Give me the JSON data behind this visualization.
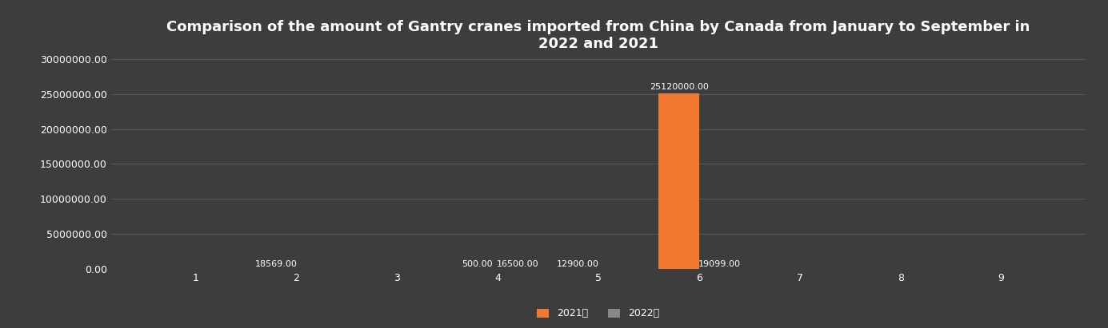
{
  "title": "Comparison of the amount of Gantry cranes imported from China by Canada from January to September in\n2022 and 2021",
  "categories": [
    1,
    2,
    3,
    4,
    5,
    6,
    7,
    8,
    9
  ],
  "series_2021": [
    0,
    18569,
    0,
    500,
    12900,
    25120000,
    0,
    0,
    0
  ],
  "series_2022": [
    0,
    0,
    0,
    16500,
    0,
    19099,
    0,
    0,
    0
  ],
  "color_2021": "#f07830",
  "color_2022": "#888888",
  "background_color": "#3d3d3d",
  "plot_bg_color": "#3d3d3d",
  "text_color": "#ffffff",
  "grid_color": "#5a5a5a",
  "ylim": [
    0,
    30000000
  ],
  "yticks": [
    0,
    5000000,
    10000000,
    15000000,
    20000000,
    25000000,
    30000000
  ],
  "legend_2021": "2021年",
  "legend_2022": "2022年",
  "bar_width": 0.4,
  "title_fontsize": 13,
  "tick_fontsize": 9,
  "label_fontsize": 8
}
